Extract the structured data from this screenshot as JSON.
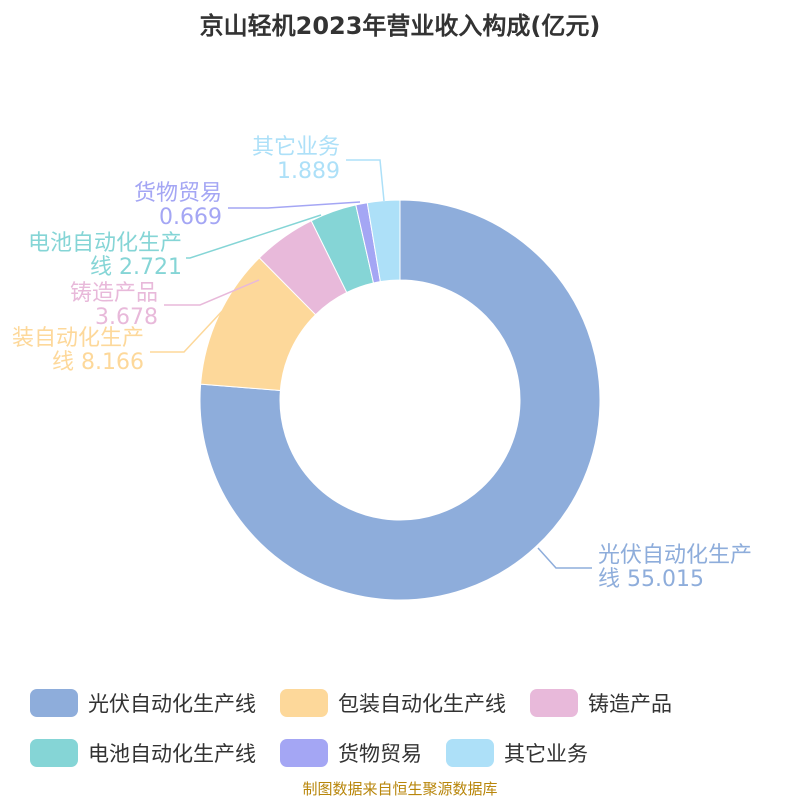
{
  "chart_data": {
    "type": "pie",
    "title": "京山轻机2023年营业收入构成(亿元)",
    "donut": true,
    "legend_position": "bottom",
    "series": [
      {
        "name": "光伏自动化生产线",
        "label_lines": [
          "光伏自动化生产",
          "线 55.015"
        ],
        "value": 55.015,
        "color": "#8EADDB"
      },
      {
        "name": "包装自动化生产线",
        "label_lines": [
          "装自动化生产",
          "线 8.166"
        ],
        "value": 8.166,
        "color": "#FDD89A"
      },
      {
        "name": "铸造产品",
        "label_lines": [
          "铸造产品",
          "3.678"
        ],
        "value": 3.678,
        "color": "#E8B9DA"
      },
      {
        "name": "电池自动化生产线",
        "label_lines": [
          "电池自动化生产",
          "线 2.721"
        ],
        "value": 2.721,
        "color": "#85D5D6"
      },
      {
        "name": "货物贸易",
        "label_lines": [
          "货物贸易",
          "0.669"
        ],
        "value": 0.669,
        "color": "#A4A6F4"
      },
      {
        "name": "其它业务",
        "label_lines": [
          "其它业务",
          "1.889"
        ],
        "value": 1.889,
        "color": "#ADE0F8"
      }
    ]
  },
  "footer": {
    "source": "制图数据来自恒生聚源数据库"
  }
}
